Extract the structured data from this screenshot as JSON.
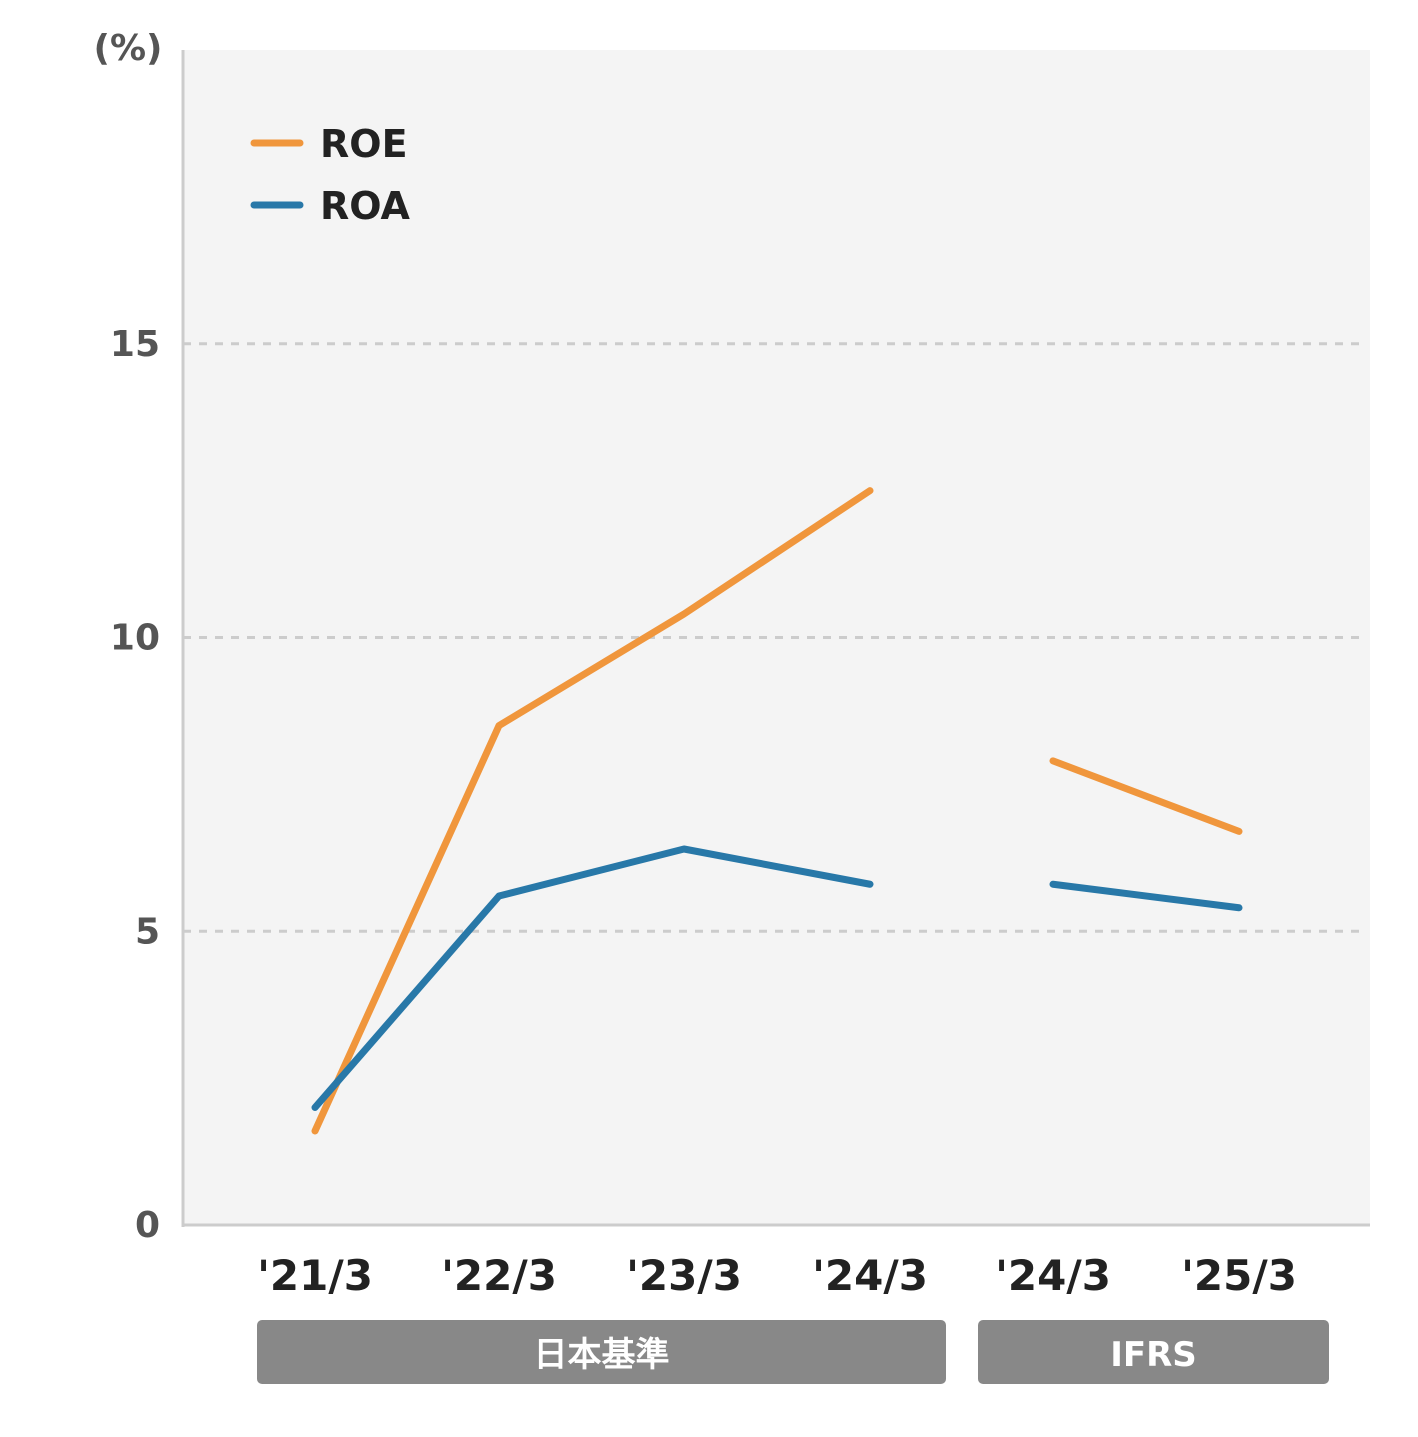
{
  "chart_data": {
    "type": "line",
    "unit_label": "(%)",
    "categories": [
      "'21/3",
      "'22/3",
      "'23/3",
      "'24/3",
      "'24/3",
      "'25/3"
    ],
    "ylim": [
      0,
      20
    ],
    "yticks": [
      0,
      5,
      10,
      15
    ],
    "grid": true,
    "legend_position": "top-left",
    "series": [
      {
        "name": "ROE",
        "color": "#f0963c",
        "segments": [
          {
            "x_index": [
              0,
              1,
              2,
              3
            ],
            "values": [
              1.6,
              8.5,
              10.4,
              12.5
            ]
          },
          {
            "x_index": [
              4,
              5
            ],
            "values": [
              7.9,
              6.7
            ]
          }
        ]
      },
      {
        "name": "ROA",
        "color": "#2878a8",
        "segments": [
          {
            "x_index": [
              0,
              1,
              2,
              3
            ],
            "values": [
              2.0,
              5.6,
              6.4,
              5.8
            ]
          },
          {
            "x_index": [
              4,
              5
            ],
            "values": [
              5.8,
              5.4
            ]
          }
        ]
      }
    ],
    "groups": [
      {
        "label": "日本基準",
        "from_index": 0,
        "to_index": 3
      },
      {
        "label": "IFRS",
        "from_index": 4,
        "to_index": 5
      }
    ],
    "colors": {
      "plot_background": "#f4f4f4",
      "group_bar": "#888888",
      "grid": "#cccccc",
      "axis": "#cccccc"
    }
  }
}
